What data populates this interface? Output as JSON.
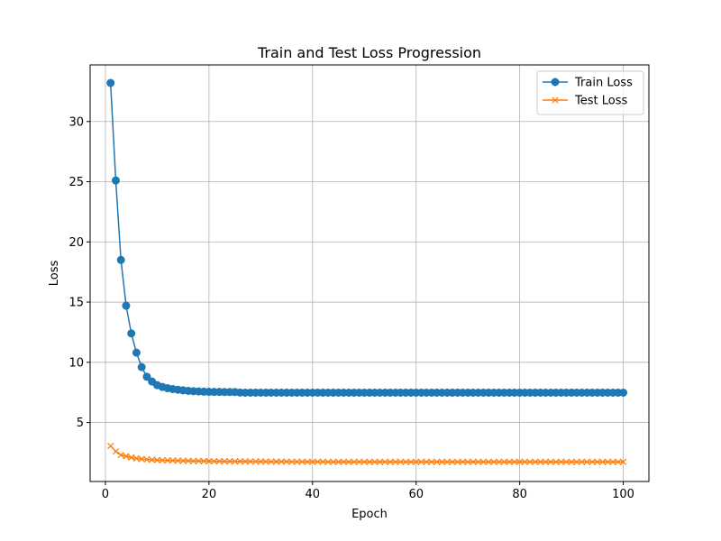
{
  "chart_data": {
    "type": "line",
    "title": "Train and Test Loss Progression",
    "xlabel": "Epoch",
    "ylabel": "Loss",
    "xlim": [
      -2.95,
      104.95
    ],
    "ylim": [
      0.1,
      34.7
    ],
    "xticks": [
      0,
      20,
      40,
      60,
      80,
      100
    ],
    "yticks": [
      5,
      10,
      15,
      20,
      25,
      30
    ],
    "grid": true,
    "legend_position": "top-right",
    "series": [
      {
        "name": "Train Loss",
        "color": "#1f77b4",
        "marker": "circle",
        "x": [
          1,
          2,
          3,
          4,
          5,
          6,
          7,
          8,
          9,
          10,
          11,
          12,
          13,
          14,
          15,
          16,
          17,
          18,
          19,
          20,
          21,
          22,
          23,
          24,
          25,
          26,
          27,
          28,
          29,
          30,
          31,
          32,
          33,
          34,
          35,
          36,
          37,
          38,
          39,
          40,
          41,
          42,
          43,
          44,
          45,
          46,
          47,
          48,
          49,
          50,
          51,
          52,
          53,
          54,
          55,
          56,
          57,
          58,
          59,
          60,
          61,
          62,
          63,
          64,
          65,
          66,
          67,
          68,
          69,
          70,
          71,
          72,
          73,
          74,
          75,
          76,
          77,
          78,
          79,
          80,
          81,
          82,
          83,
          84,
          85,
          86,
          87,
          88,
          89,
          90,
          91,
          92,
          93,
          94,
          95,
          96,
          97,
          98,
          99,
          100
        ],
        "values": [
          33.2,
          25.1,
          18.5,
          14.7,
          12.4,
          10.8,
          9.6,
          8.8,
          8.4,
          8.1,
          7.95,
          7.85,
          7.78,
          7.72,
          7.67,
          7.63,
          7.6,
          7.58,
          7.56,
          7.55,
          7.54,
          7.54,
          7.53,
          7.53,
          7.53,
          7.49,
          7.48,
          7.48,
          7.48,
          7.48,
          7.48,
          7.48,
          7.48,
          7.48,
          7.48,
          7.48,
          7.48,
          7.48,
          7.48,
          7.48,
          7.48,
          7.48,
          7.48,
          7.48,
          7.48,
          7.48,
          7.48,
          7.48,
          7.48,
          7.48,
          7.48,
          7.48,
          7.48,
          7.48,
          7.48,
          7.48,
          7.48,
          7.48,
          7.48,
          7.48,
          7.48,
          7.48,
          7.48,
          7.48,
          7.48,
          7.48,
          7.48,
          7.48,
          7.48,
          7.48,
          7.48,
          7.48,
          7.48,
          7.48,
          7.48,
          7.48,
          7.48,
          7.48,
          7.48,
          7.48,
          7.48,
          7.48,
          7.48,
          7.48,
          7.48,
          7.48,
          7.48,
          7.48,
          7.48,
          7.48,
          7.48,
          7.48,
          7.48,
          7.48,
          7.48,
          7.48,
          7.48,
          7.48,
          7.48,
          7.48
        ]
      },
      {
        "name": "Test Loss",
        "color": "#ff7f0e",
        "marker": "x",
        "x": [
          1,
          2,
          3,
          4,
          5,
          6,
          7,
          8,
          9,
          10,
          11,
          12,
          13,
          14,
          15,
          16,
          17,
          18,
          19,
          20,
          21,
          22,
          23,
          24,
          25,
          26,
          27,
          28,
          29,
          30,
          31,
          32,
          33,
          34,
          35,
          36,
          37,
          38,
          39,
          40,
          41,
          42,
          43,
          44,
          45,
          46,
          47,
          48,
          49,
          50,
          51,
          52,
          53,
          54,
          55,
          56,
          57,
          58,
          59,
          60,
          61,
          62,
          63,
          64,
          65,
          66,
          67,
          68,
          69,
          70,
          71,
          72,
          73,
          74,
          75,
          76,
          77,
          78,
          79,
          80,
          81,
          82,
          83,
          84,
          85,
          86,
          87,
          88,
          89,
          90,
          91,
          92,
          93,
          94,
          95,
          96,
          97,
          98,
          99,
          100
        ],
        "values": [
          3.05,
          2.6,
          2.3,
          2.2,
          2.1,
          2.02,
          1.97,
          1.93,
          1.9,
          1.88,
          1.86,
          1.85,
          1.84,
          1.83,
          1.82,
          1.81,
          1.8,
          1.8,
          1.79,
          1.79,
          1.78,
          1.78,
          1.78,
          1.77,
          1.77,
          1.77,
          1.76,
          1.76,
          1.76,
          1.76,
          1.75,
          1.75,
          1.75,
          1.75,
          1.75,
          1.74,
          1.74,
          1.74,
          1.74,
          1.74,
          1.74,
          1.74,
          1.73,
          1.73,
          1.73,
          1.73,
          1.73,
          1.73,
          1.73,
          1.73,
          1.73,
          1.73,
          1.73,
          1.73,
          1.73,
          1.73,
          1.73,
          1.73,
          1.73,
          1.73,
          1.73,
          1.73,
          1.73,
          1.73,
          1.73,
          1.73,
          1.73,
          1.73,
          1.73,
          1.73,
          1.73,
          1.73,
          1.73,
          1.73,
          1.73,
          1.73,
          1.73,
          1.73,
          1.73,
          1.73,
          1.73,
          1.73,
          1.73,
          1.73,
          1.73,
          1.73,
          1.73,
          1.73,
          1.73,
          1.73,
          1.73,
          1.73,
          1.73,
          1.73,
          1.73,
          1.73,
          1.73,
          1.73,
          1.73,
          1.73
        ]
      }
    ]
  }
}
